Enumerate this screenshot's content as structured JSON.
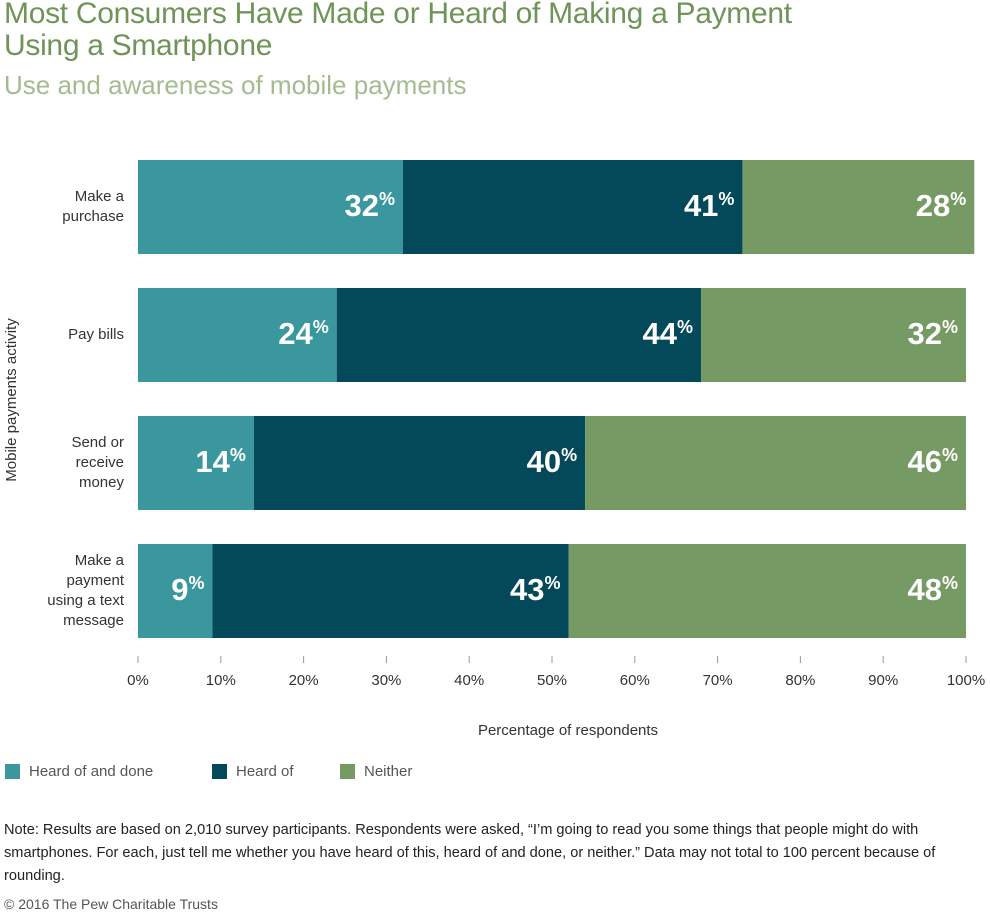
{
  "chart_data": {
    "type": "stacked_bar_horizontal",
    "title": "Most Consumers Have Made or Heard of Making a Payment\nUsing a Smartphone",
    "subtitle": "Use and awareness of mobile payments",
    "x_axis_label": "Percentage of respondents",
    "y_axis_label": "Mobile payments activity",
    "categories": [
      "Make a\npurchase",
      "Pay bills",
      "Send or\nreceive\nmoney",
      "Make a\npayment\nusing a text\nmessage"
    ],
    "series": [
      {
        "name": "Heard of and done",
        "color": "#3a979e",
        "values": [
          32,
          24,
          14,
          9
        ],
        "value_labels": [
          "32%",
          "24%",
          "14%",
          "9%"
        ]
      },
      {
        "name": "Heard of",
        "color": "#03495a",
        "values": [
          41,
          44,
          40,
          43
        ],
        "value_labels": [
          "41%",
          "44%",
          "40%",
          "43%"
        ]
      },
      {
        "name": "Neither",
        "color": "#769a63",
        "values": [
          28,
          32,
          46,
          48
        ],
        "value_labels": [
          "28%",
          "32%",
          "46%",
          "48%"
        ]
      }
    ],
    "xlim": [
      0,
      100
    ],
    "xticks": [
      {
        "value": 0,
        "label": "0%"
      },
      {
        "value": 10,
        "label": "10%"
      },
      {
        "value": 20,
        "label": "20%"
      },
      {
        "value": 30,
        "label": "30%"
      },
      {
        "value": 40,
        "label": "40%"
      },
      {
        "value": 50,
        "label": "50%"
      },
      {
        "value": 60,
        "label": "60%"
      },
      {
        "value": 70,
        "label": "70%"
      },
      {
        "value": 80,
        "label": "80%"
      },
      {
        "value": 90,
        "label": "90%"
      },
      {
        "value": 100,
        "label": "100%"
      }
    ],
    "legend_position": "bottom-left",
    "note": "Note: Results are based on 2,010 survey participants. Respondents were asked, “I’m going to read you some things that people might do with smartphones. For each, just tell me whether you have heard of this, heard of and done, or neither.” Data may not total to 100 percent because of rounding.",
    "source": "© 2016 The Pew Charitable Trusts"
  }
}
